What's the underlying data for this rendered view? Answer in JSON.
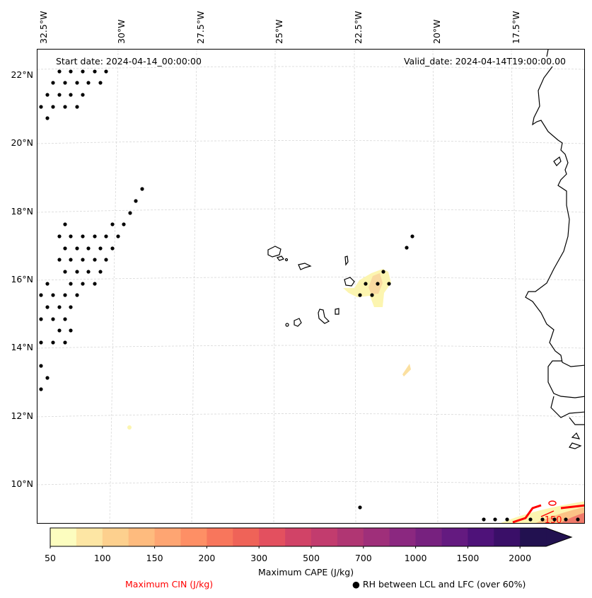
{
  "map": {
    "start_date_label": "Start date: 2024-04-14_00:00:00",
    "valid_date_label": "Valid_date: 2024-04-14T19:00:00.00",
    "lon_ticks": [
      "32.5°W",
      "30°W",
      "27.5°W",
      "25°W",
      "22.5°W",
      "20°W",
      "17.5°W"
    ],
    "lat_ticks": [
      "22°N",
      "20°N",
      "18°N",
      "16°N",
      "14°N",
      "12°N",
      "10°N"
    ],
    "extent": {
      "lon_min": -33.0,
      "lon_max": -15.2,
      "lat_min": 8.9,
      "lat_max": 22.7
    },
    "contour_label": "-150",
    "feature_color": "#ff0000"
  },
  "colorbar": {
    "title": "Maximum CAPE (J/kg)",
    "tick_labels": [
      "50",
      "100",
      "150",
      "200",
      "300",
      "500",
      "700",
      "1000",
      "1500",
      "2000"
    ],
    "levels": [
      50,
      75,
      100,
      125,
      150,
      175,
      200,
      250,
      300,
      400,
      500,
      600,
      700,
      850,
      1000,
      1250,
      1500,
      1750,
      2000
    ],
    "colors": [
      "#fcfdbf",
      "#fde6a4",
      "#fdd08e",
      "#febb7e",
      "#fea572",
      "#fe8f65",
      "#f8765c",
      "#ef6358",
      "#e3505f",
      "#d14367",
      "#c23c6e",
      "#b03673",
      "#9f2f7a",
      "#8b2880",
      "#77217f",
      "#641a80",
      "#4e1279",
      "#3a0f68",
      "#221150"
    ],
    "extend_color": "#221150"
  },
  "legend": {
    "cin_label": "Maximum CIN (J/kg)",
    "cin_color": "#ff0000",
    "rh_marker": "●",
    "rh_label": "RH between LCL and LFC (over 60%)"
  }
}
